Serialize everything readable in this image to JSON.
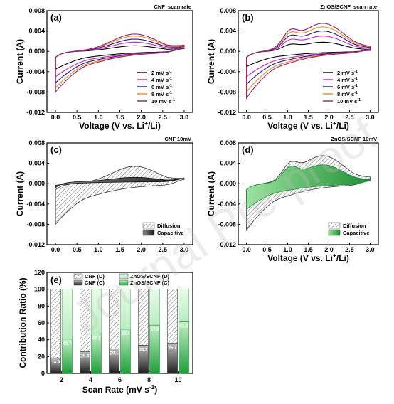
{
  "watermark": "Journal Pre-proof",
  "chart_data": [
    {
      "id": "a",
      "panel_label": "(a)",
      "type": "line",
      "title": "CNF_scan rate",
      "xlabel": "Voltage (V vs. Li⁺/Li)",
      "ylabel": "Current (A)",
      "xlim": [
        -0.2,
        3.2
      ],
      "ylim": [
        -0.012,
        0.008
      ],
      "xticks": [
        "0.0",
        "0.5",
        "1.0",
        "1.5",
        "2.0",
        "2.5",
        "3.0"
      ],
      "yticks": [
        "0.008",
        "0.004",
        "0.000",
        "-0.004",
        "-0.008",
        "-0.012"
      ],
      "legend_position": "bottom-right",
      "series": [
        {
          "name": "2 mV s⁻¹",
          "color": "#000000",
          "peak_a": 0.0011,
          "min_c": -0.0035,
          "end": 0.001
        },
        {
          "name": "4 mV s⁻¹",
          "color": "#d21fc6",
          "peak_a": 0.0018,
          "min_c": -0.005,
          "end": 0.0012
        },
        {
          "name": "6 mV s⁻¹",
          "color": "#1a1a8c",
          "peak_a": 0.0024,
          "min_c": -0.0062,
          "end": 0.0014
        },
        {
          "name": "8 mV s⁻¹",
          "color": "#f28a1d",
          "peak_a": 0.003,
          "min_c": -0.0072,
          "end": 0.0016
        },
        {
          "name": "10 mV s⁻¹",
          "color": "#9b1f6a",
          "peak_a": 0.0034,
          "min_c": -0.008,
          "end": 0.0018
        }
      ]
    },
    {
      "id": "b",
      "panel_label": "(b)",
      "type": "line",
      "title": "ZnOS/SCNF_scan rate",
      "xlabel": "Voltage (V vs. Li⁺/Li)",
      "ylabel": "Current (A)",
      "xlim": [
        -0.2,
        3.2
      ],
      "ylim": [
        -0.012,
        0.008
      ],
      "xticks": [
        "0.0",
        "0.5",
        "1.0",
        "1.5",
        "2.0",
        "2.5",
        "3.0"
      ],
      "yticks": [
        "0.008",
        "0.004",
        "0.000",
        "-0.004",
        "-0.008",
        "-0.012"
      ],
      "legend_position": "bottom-right",
      "series": [
        {
          "name": "2 mV s⁻¹",
          "color": "#000000",
          "peak_a": 0.0018,
          "min_c": -0.003,
          "end": 0.0004
        },
        {
          "name": "4 mV s⁻¹",
          "color": "#d21fc6",
          "peak_a": 0.003,
          "min_c": -0.005,
          "end": 0.0006
        },
        {
          "name": "6 mV s⁻¹",
          "color": "#1a1a8c",
          "peak_a": 0.004,
          "min_c": -0.0065,
          "end": 0.0008
        },
        {
          "name": "8 mV s⁻¹",
          "color": "#f28a1d",
          "peak_a": 0.0048,
          "min_c": -0.008,
          "end": 0.0009
        },
        {
          "name": "10 mV s⁻¹",
          "color": "#9b1f6a",
          "peak_a": 0.0055,
          "min_c": -0.0092,
          "end": 0.001
        }
      ]
    },
    {
      "id": "c",
      "panel_label": "(c)",
      "type": "area",
      "title": "CNF 10mV",
      "xlabel": "",
      "ylabel": "Current (A)",
      "xlim": [
        -0.2,
        3.2
      ],
      "ylim": [
        -0.012,
        0.008
      ],
      "xticks": [
        "0.0",
        "0.5",
        "1.0",
        "1.5",
        "2.0",
        "2.5",
        "3.0"
      ],
      "yticks": [
        "0.008",
        "0.004",
        "0.000",
        "-0.004",
        "-0.008",
        "-0.012"
      ],
      "legend_position": "bottom-right",
      "legend": [
        {
          "name": "Diffusion",
          "style": "hatch"
        },
        {
          "name": "Capacitive",
          "style": "fill",
          "color": "#2b2b2b"
        }
      ],
      "total_peak_a": 0.0034,
      "total_min_c": -0.008,
      "capacitive_fraction": 0.357
    },
    {
      "id": "d",
      "panel_label": "(d)",
      "type": "area",
      "title": "ZnOS/SCNF 10mV",
      "xlabel": "Voltage (V vs. Li⁺/Li)",
      "ylabel": "Current (A)",
      "xlim": [
        -0.2,
        3.2
      ],
      "ylim": [
        -0.012,
        0.008
      ],
      "xticks": [
        "0.0",
        "0.5",
        "1.0",
        "1.5",
        "2.0",
        "2.5",
        "3.0"
      ],
      "yticks": [
        "0.008",
        "0.004",
        "0.000",
        "-0.004",
        "-0.008",
        "-0.012"
      ],
      "legend_position": "bottom-right",
      "legend": [
        {
          "name": "Diffusion",
          "style": "hatch"
        },
        {
          "name": "Capacitive",
          "style": "fill",
          "color": "#3aa33a"
        }
      ],
      "total_peak_a": 0.0055,
      "total_min_c": -0.0092,
      "capacitive_fraction": 0.613
    },
    {
      "id": "e",
      "panel_label": "(e)",
      "type": "bar",
      "title": "",
      "xlabel": "Scan Rate (mV s⁻¹)",
      "ylabel": "Contribution Ratio (%)",
      "ylim": [
        0,
        120
      ],
      "yticks": [
        "0",
        "20",
        "40",
        "60",
        "80",
        "100",
        "120"
      ],
      "categories": [
        "2",
        "4",
        "6",
        "8",
        "10"
      ],
      "legend_position": "top",
      "legend": [
        "CNF (D)",
        "CNF (C)",
        "ZnOS/SCNF (D)",
        "ZnOS/SCNF (C)"
      ],
      "series": [
        {
          "name": "CNF (C)",
          "values": [
            18.4,
            25.6,
            29.1,
            33.3,
            35.7
          ],
          "labels": [
            "18.4",
            "25.6",
            "29.1",
            "33.3",
            "35.7"
          ],
          "color": "#2b2b2b"
        },
        {
          "name": "ZnOS/SCNF (C)",
          "values": [
            40.7,
            47.1,
            52.4,
            57.3,
            61.3
          ],
          "labels": [
            "40.7",
            "47.1",
            "52.4",
            "57.3",
            "61.3"
          ],
          "color": "#2fa84f"
        }
      ]
    }
  ]
}
